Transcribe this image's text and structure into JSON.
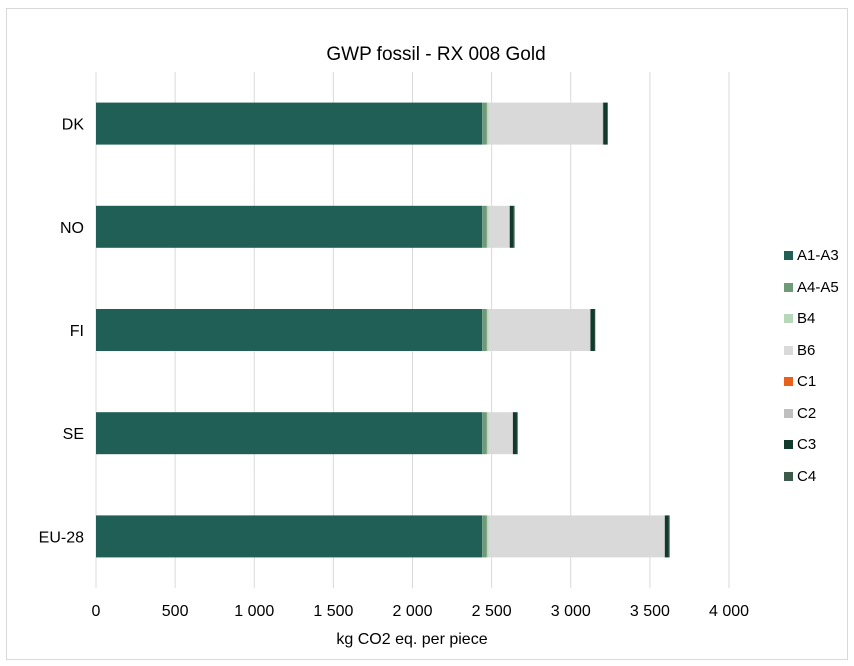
{
  "chart_data": {
    "type": "bar",
    "orientation": "horizontal",
    "stacked": true,
    "title": "GWP fossil -  RX 008 Gold",
    "xlabel": "kg CO2 eq. per piece",
    "ylabel": "",
    "xlim": [
      0,
      4000
    ],
    "xticks": [
      0,
      500,
      1000,
      1500,
      2000,
      2500,
      3000,
      3500,
      4000
    ],
    "xtick_labels": [
      "0",
      "500",
      "1 000",
      "1 500",
      "2 000",
      "2 500",
      "3 000",
      "3 500",
      "4 000"
    ],
    "grid": true,
    "legend_position": "right",
    "categories": [
      "DK",
      "NO",
      "FI",
      "SE",
      "EU-28"
    ],
    "series": [
      {
        "name": "A1-A3",
        "color": "#1f5f55",
        "values": [
          2440,
          2440,
          2440,
          2440,
          2440
        ]
      },
      {
        "name": "A4-A5",
        "color": "#6f9a78",
        "values": [
          30,
          30,
          30,
          30,
          30
        ]
      },
      {
        "name": "B4",
        "color": "#b5d8b9",
        "values": [
          10,
          10,
          10,
          10,
          10
        ]
      },
      {
        "name": "B6",
        "color": "#d9d9d9",
        "values": [
          720,
          130,
          640,
          150,
          1110
        ]
      },
      {
        "name": "C1",
        "color": "#e8601c",
        "values": [
          0,
          0,
          0,
          0,
          0
        ]
      },
      {
        "name": "C2",
        "color": "#bfbfbf",
        "values": [
          5,
          5,
          5,
          5,
          5
        ]
      },
      {
        "name": "C3",
        "color": "#0f3a2c",
        "values": [
          25,
          25,
          25,
          25,
          25
        ]
      },
      {
        "name": "C4",
        "color": "#3b5a49",
        "values": [
          5,
          5,
          5,
          5,
          5
        ]
      }
    ]
  }
}
